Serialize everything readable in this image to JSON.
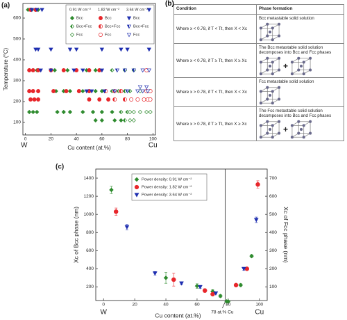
{
  "chart_data": [
    {
      "type": "scatter",
      "label": "(a)",
      "xlabel": "Cu content (at.%)",
      "ylabel": "Temperature (°C)",
      "x_end_labels": [
        "W",
        "Cu"
      ],
      "xlim": [
        -2,
        102
      ],
      "ylim": [
        40,
        670
      ],
      "xticks": [
        0,
        20,
        40,
        60,
        80,
        100
      ],
      "yticks": [
        100,
        200,
        300,
        400,
        500,
        600
      ],
      "groups": [
        {
          "title": "0.91 W cm⁻²",
          "series": [
            {
              "name": "Bcc",
              "color": "#2e8b2e",
              "marker": "diamond",
              "fill": "full",
              "x": [
                2,
                5,
                10,
                3,
                6,
                9,
                23,
                33,
                48,
                55,
                3,
                6,
                24,
                30,
                35,
                45,
                55,
                60,
                3,
                6,
                9,
                25,
                30,
                35,
                45,
                53,
                60,
                68,
                55,
                60,
                70,
                75
              ],
              "values": [
                640,
                640,
                640,
                350,
                350,
                350,
                350,
                350,
                350,
                350,
                250,
                250,
                250,
                250,
                250,
                250,
                250,
                250,
                150,
                150,
                150,
                150,
                150,
                150,
                150,
                150,
                150,
                150,
                110,
                110,
                110,
                110
              ]
            },
            {
              "name": "Bcc+Fcc",
              "color": "#2e8b2e",
              "marker": "diamond",
              "fill": "half",
              "x": [
                68,
                78,
                85,
                68,
                73,
                78,
                82,
                75,
                80,
                78
              ],
              "values": [
                350,
                350,
                350,
                250,
                250,
                250,
                250,
                150,
                150,
                110
              ]
            },
            {
              "name": "Fcc",
              "color": "#2e8b2e",
              "marker": "diamond",
              "fill": "open",
              "x": [
                90,
                95,
                98,
                82,
                85,
                90,
                95,
                98,
                82,
                85
              ],
              "values": [
                250,
                250,
                250,
                150,
                150,
                150,
                150,
                150,
                110,
                110
              ]
            }
          ]
        },
        {
          "title": "1.82 W cm⁻²",
          "series": [
            {
              "name": "Bcc",
              "color": "#e8262b",
              "marker": "circle",
              "fill": "full",
              "x": [
                4,
                8,
                3,
                6,
                10,
                20,
                30,
                40,
                50,
                58,
                3,
                6,
                10,
                22,
                32,
                42,
                50,
                4,
                7,
                10,
                50,
                58,
                65
              ],
              "values": [
                640,
                640,
                350,
                350,
                350,
                350,
                350,
                350,
                350,
                350,
                250,
                250,
                250,
                250,
                250,
                250,
                250,
                210,
                210,
                210,
                210,
                210,
                210
              ]
            },
            {
              "name": "Bcc+Fcc",
              "color": "#e8262b",
              "marker": "circle",
              "fill": "half",
              "x": [
                63,
                70,
                75,
                70,
                78
              ],
              "values": [
                250,
                250,
                250,
                210,
                210
              ]
            },
            {
              "name": "Fcc",
              "color": "#e8262b",
              "marker": "circle",
              "fill": "open",
              "x": [
                95,
                95,
                98,
                83,
                88,
                93,
                96,
                98
              ],
              "values": [
                350,
                250,
                250,
                210,
                210,
                210,
                210,
                210
              ]
            }
          ]
        },
        {
          "title": "3.64 W cm⁻²",
          "series": [
            {
              "name": "Bcc",
              "color": "#1f2fb0",
              "marker": "tridown",
              "fill": "full",
              "x": [
                5,
                9,
                13,
                97,
                8,
                10,
                20,
                35,
                40,
                60,
                75,
                80,
                97,
                12,
                20,
                38,
                45,
                60,
                48,
                52,
                62
              ],
              "values": [
                640,
                640,
                640,
                640,
                450,
                450,
                450,
                450,
                450,
                450,
                450,
                450,
                450,
                350,
                350,
                350,
                350,
                350,
                250,
                250,
                250
              ]
            },
            {
              "name": "Bcc+Fcc",
              "color": "#1f2fb0",
              "marker": "tridown",
              "fill": "half",
              "x": [
                72,
                78,
                85,
                70,
                80
              ],
              "values": [
                350,
                350,
                350,
                250,
                250
              ]
            },
            {
              "name": "Fcc",
              "color": "#1f2fb0",
              "marker": "tridown",
              "fill": "open",
              "x": [
                92,
                97,
                90,
                95,
                88,
                92,
                96
              ],
              "values": [
                350,
                350,
                270,
                270,
                250,
                250,
                250
              ]
            }
          ]
        }
      ]
    },
    {
      "type": "scatter_dual",
      "label": "(c)",
      "xlabel": "Cu content (at.%)",
      "ylabel": "Xc of Bcc phase (nm)",
      "y2label": "Xc of Fcc phase (nm)",
      "x_end_labels": [
        "W",
        "Cu"
      ],
      "xlim": [
        -5,
        105
      ],
      "ylim": [
        50,
        1500
      ],
      "y2lim": [
        25,
        750
      ],
      "xticks": [
        0,
        20,
        40,
        60,
        80,
        100
      ],
      "yticks": [
        200,
        400,
        600,
        800,
        1000,
        1200,
        1400
      ],
      "y2ticks": [
        100,
        200,
        300,
        400,
        500,
        600,
        700
      ],
      "vline": {
        "x": 78,
        "label": "78 at.% Cu"
      },
      "series": [
        {
          "name": "Power density: 0.91 W cm⁻²",
          "color": "#2e8b2e",
          "marker": "diamond",
          "x": [
            5,
            40,
            60,
            70,
            75,
            79
          ],
          "values": [
            1270,
            300,
            210,
            150,
            100,
            40
          ],
          "errors": [
            40,
            60,
            25,
            20,
            15,
            10
          ]
        },
        {
          "name": "Power density: 1.82 W cm⁻²",
          "color": "#e8262b",
          "marker": "circle",
          "x": [
            8,
            45,
            65,
            70
          ],
          "values": [
            1030,
            280,
            160,
            120
          ],
          "errors": [
            40,
            70,
            20,
            15
          ]
        },
        {
          "name": "Power density: 3.64 W cm⁻²",
          "color": "#1f2fb0",
          "marker": "tridown",
          "x": [
            15,
            33,
            50,
            62,
            72
          ],
          "values": [
            860,
            350,
            240,
            200,
            130
          ],
          "errors": [
            30,
            20,
            15,
            15,
            10
          ]
        },
        {
          "color": "#2e8b2e",
          "marker": "diamond",
          "axis": "y2",
          "x": [
            80,
            88,
            95
          ],
          "values": [
            20,
            110,
            270
          ],
          "errors": [
            5,
            8,
            8
          ]
        },
        {
          "color": "#e8262b",
          "marker": "circle",
          "axis": "y2",
          "x": [
            85,
            92,
            99
          ],
          "values": [
            110,
            200,
            665
          ],
          "errors": [
            6,
            8,
            20
          ]
        },
        {
          "color": "#1f2fb0",
          "marker": "tridown",
          "axis": "y2",
          "x": [
            90,
            98
          ],
          "values": [
            200,
            470
          ],
          "errors": [
            8,
            15
          ]
        }
      ]
    }
  ],
  "table": {
    "label": "(b)",
    "header": [
      "Condition",
      "Phase formation"
    ],
    "rows": [
      [
        "Where x < 0.78, if T < Tt, then X < Xc",
        "Bcc metastable solid solution"
      ],
      [
        "Where x < 0.78, if T ≥ Tt, then X ≥ Xc",
        "The Bcc metastable solid solution decomposes into Bcc and Fcc phases"
      ],
      [
        "Where x > 0.78, if T < Tt, then X < Xc",
        "Fcc metastable solid solution"
      ],
      [
        "Where x > 0.78, if T ≥ Tt, then X ≥ Xc",
        "The Fcc metastable solid solution decomposes into Bcc and Fcc phases"
      ]
    ]
  }
}
